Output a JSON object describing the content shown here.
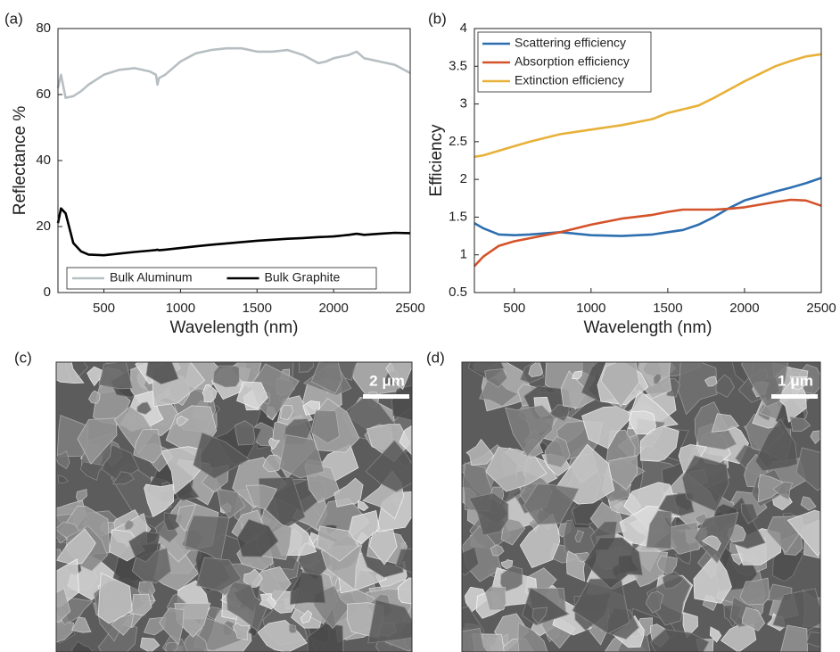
{
  "chart_data": [
    {
      "type": "line",
      "panel_label": "(a)",
      "x_label": "Wavelength (nm)",
      "y_label": "Reflectance %",
      "x": [
        200,
        220,
        250,
        300,
        350,
        400,
        500,
        600,
        700,
        800,
        840,
        850,
        860,
        900,
        1000,
        1100,
        1200,
        1300,
        1400,
        1500,
        1600,
        1700,
        1800,
        1900,
        1950,
        2000,
        2100,
        2150,
        2200,
        2300,
        2400,
        2500
      ],
      "series": [
        {
          "name": "Bulk Aluminum",
          "color": "#b8bfc2",
          "values": [
            62,
            66,
            59,
            59.5,
            61,
            63,
            66,
            67.5,
            68,
            67,
            66,
            63,
            65,
            66,
            70,
            72.5,
            73.5,
            74,
            74,
            73,
            73,
            73.5,
            72,
            69.5,
            70,
            71,
            72,
            73,
            71,
            70,
            69,
            66.5
          ]
        },
        {
          "name": "Bulk Graphite",
          "color": "#000000",
          "values": [
            21,
            25.5,
            24,
            15,
            12.5,
            11.5,
            11.3,
            11.8,
            12.3,
            12.7,
            12.9,
            13,
            12.8,
            13,
            13.5,
            14,
            14.5,
            14.9,
            15.3,
            15.7,
            16,
            16.3,
            16.5,
            16.8,
            16.9,
            17,
            17.5,
            17.8,
            17.5,
            17.8,
            18.1,
            18
          ]
        }
      ],
      "xlim": [
        200,
        2500
      ],
      "xticks": [
        500,
        1000,
        1500,
        2000,
        2500
      ],
      "ylim": [
        0,
        80
      ],
      "yticks": [
        0,
        20,
        40,
        60,
        80
      ],
      "legend": "lower center"
    },
    {
      "type": "line",
      "panel_label": "(b)",
      "x_label": "Wavelength (nm)",
      "y_label": "Efficiency",
      "x": [
        240,
        300,
        400,
        500,
        600,
        800,
        1000,
        1200,
        1400,
        1500,
        1600,
        1700,
        1800,
        1900,
        2000,
        2200,
        2300,
        2400,
        2500
      ],
      "series": [
        {
          "name": "Scattering efficiency",
          "color": "#2e6fb0",
          "values": [
            1.42,
            1.35,
            1.27,
            1.26,
            1.27,
            1.3,
            1.26,
            1.25,
            1.27,
            1.3,
            1.33,
            1.4,
            1.5,
            1.62,
            1.72,
            1.84,
            1.89,
            1.95,
            2.02
          ]
        },
        {
          "name": "Absorption efficiency",
          "color": "#d4532a",
          "values": [
            0.85,
            0.98,
            1.12,
            1.18,
            1.22,
            1.3,
            1.4,
            1.48,
            1.53,
            1.57,
            1.6,
            1.6,
            1.6,
            1.61,
            1.63,
            1.7,
            1.73,
            1.72,
            1.65
          ]
        },
        {
          "name": "Extinction efficiency",
          "color": "#e8b13a",
          "values": [
            2.3,
            2.32,
            2.38,
            2.44,
            2.5,
            2.6,
            2.66,
            2.72,
            2.8,
            2.88,
            2.93,
            2.98,
            3.08,
            3.19,
            3.3,
            3.5,
            3.57,
            3.63,
            3.66
          ]
        }
      ],
      "xlim": [
        240,
        2500
      ],
      "xticks": [
        500,
        1000,
        1500,
        2000,
        2500
      ],
      "ylim": [
        0.5,
        4
      ],
      "yticks": [
        0.5,
        1,
        1.5,
        2,
        2.5,
        3,
        3.5,
        4
      ],
      "legend": "upper left"
    }
  ],
  "images": [
    {
      "panel_label": "(c)",
      "scale_bar": "2 μm"
    },
    {
      "panel_label": "(d)",
      "scale_bar": "1 μm"
    }
  ]
}
